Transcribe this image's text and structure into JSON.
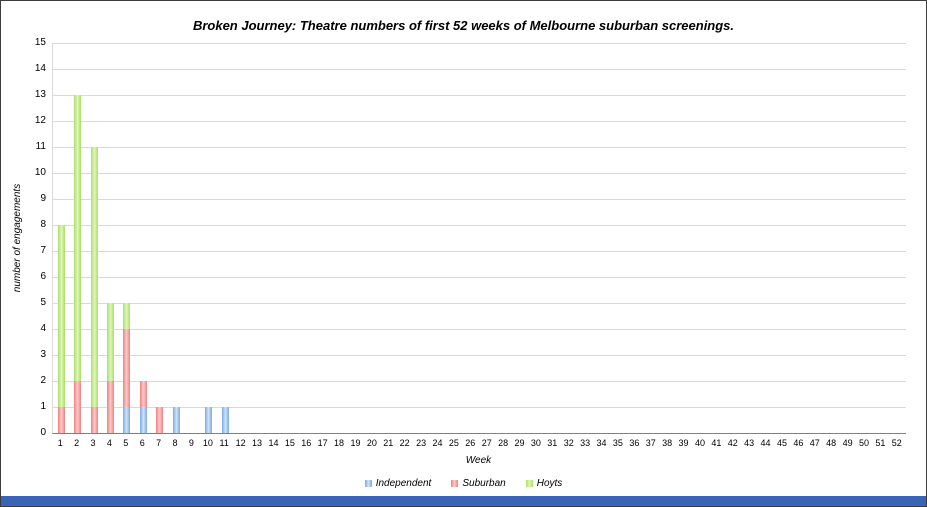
{
  "window": {
    "bottom_strip_color": "#3a64b5"
  },
  "chart_data": {
    "type": "bar",
    "stacked": true,
    "title": "Broken Journey: Theatre numbers of first 52 weeks of Melbourne suburban screenings.",
    "xlabel": "Week",
    "ylabel": "number of engagements",
    "ylim": [
      0,
      15
    ],
    "y_tick_step": 1,
    "grid": true,
    "legend_position": "bottom",
    "categories": [
      "1",
      "2",
      "3",
      "4",
      "5",
      "6",
      "7",
      "8",
      "9",
      "10",
      "11",
      "12",
      "13",
      "14",
      "15",
      "16",
      "17",
      "18",
      "19",
      "20",
      "21",
      "22",
      "23",
      "24",
      "25",
      "26",
      "27",
      "28",
      "29",
      "30",
      "31",
      "32",
      "33",
      "34",
      "35",
      "36",
      "37",
      "38",
      "39",
      "40",
      "41",
      "42",
      "43",
      "44",
      "45",
      "46",
      "47",
      "48",
      "49",
      "50",
      "51",
      "52"
    ],
    "series": [
      {
        "name": "Independent",
        "color": "#7ca9e4",
        "color_light": "#cfe4f8",
        "values": [
          0,
          0,
          0,
          0,
          1,
          1,
          0,
          1,
          0,
          1,
          1,
          0,
          0,
          0,
          0,
          0,
          0,
          0,
          0,
          0,
          0,
          0,
          0,
          0,
          0,
          0,
          0,
          0,
          0,
          0,
          0,
          0,
          0,
          0,
          0,
          0,
          0,
          0,
          0,
          0,
          0,
          0,
          0,
          0,
          0,
          0,
          0,
          0,
          0,
          0,
          0,
          0
        ]
      },
      {
        "name": "Suburban",
        "color": "#f28080",
        "color_light": "#fbcaca",
        "values": [
          1,
          2,
          1,
          2,
          3,
          1,
          1,
          0,
          0,
          0,
          0,
          0,
          0,
          0,
          0,
          0,
          0,
          0,
          0,
          0,
          0,
          0,
          0,
          0,
          0,
          0,
          0,
          0,
          0,
          0,
          0,
          0,
          0,
          0,
          0,
          0,
          0,
          0,
          0,
          0,
          0,
          0,
          0,
          0,
          0,
          0,
          0,
          0,
          0,
          0,
          0,
          0
        ]
      },
      {
        "name": "Hoyts",
        "color": "#a9e063",
        "color_light": "#e0f5bb",
        "values": [
          7,
          11,
          10,
          3,
          1,
          0,
          0,
          0,
          0,
          0,
          0,
          0,
          0,
          0,
          0,
          0,
          0,
          0,
          0,
          0,
          0,
          0,
          0,
          0,
          0,
          0,
          0,
          0,
          0,
          0,
          0,
          0,
          0,
          0,
          0,
          0,
          0,
          0,
          0,
          0,
          0,
          0,
          0,
          0,
          0,
          0,
          0,
          0,
          0,
          0,
          0,
          0
        ]
      }
    ]
  }
}
